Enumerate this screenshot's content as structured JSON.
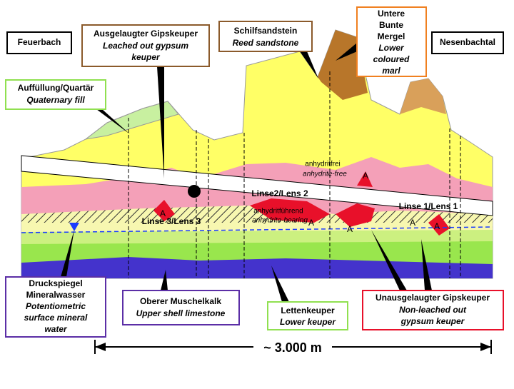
{
  "labels": {
    "feuerbach": "Feuerbach",
    "nesenbachtal": "Nesenbachtal",
    "leached": {
      "de": [
        "Ausgelaugter Gipskeuper"
      ],
      "en": [
        "Leached out gypsum",
        "keuper"
      ]
    },
    "reed": {
      "de": [
        "Schilfsandstein"
      ],
      "en": [
        "Reed sandstone"
      ]
    },
    "marl": {
      "de": [
        "Untere",
        "Bunte",
        "Mergel"
      ],
      "en": [
        "Lower",
        "coloured",
        "marl"
      ]
    },
    "fill": {
      "de": [
        "Auffüllung/Quartär"
      ],
      "en": [
        "Quaternary fill"
      ]
    },
    "water": {
      "de": [
        "Druckspiegel",
        "Mineralwasser"
      ],
      "en": [
        "Potentiometric",
        "surface mineral",
        "water"
      ]
    },
    "shell": {
      "de": [
        "Oberer Muschelkalk"
      ],
      "en": [
        "Upper shell limestone"
      ]
    },
    "letten": {
      "de": [
        "Lettenkeuper"
      ],
      "en": [
        "Lower keuper"
      ]
    },
    "nonleached": {
      "de": [
        "Unausgelaugter Gipskeuper"
      ],
      "en": [
        "Non-leached out",
        "gypsum keuper"
      ]
    }
  },
  "section": {
    "anhydrite_free": {
      "de": "anhydritfrei",
      "en": "anhydrite-free"
    },
    "anhydrite_bearing": {
      "de": "anhydritführend",
      "en": "anhydrite-bearing"
    },
    "lens2": "Linse2/Lens 2",
    "lens1": "Linse 1/Lens 1",
    "lens3": "Linse 3/Lens 3",
    "a_marks": [
      "A",
      "A",
      "A",
      "A",
      "A",
      "A"
    ]
  },
  "scale": "~ 3.000 m"
}
